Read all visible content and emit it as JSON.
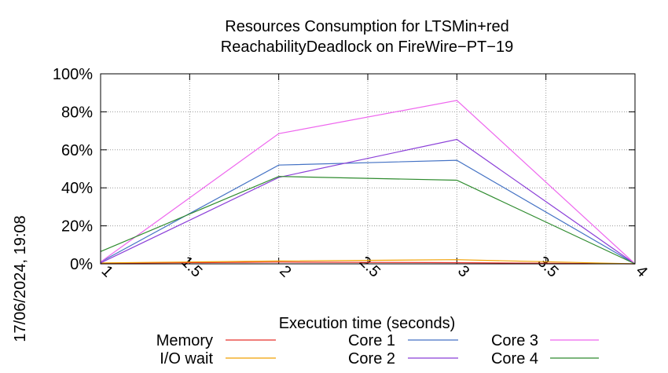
{
  "chart_data": {
    "type": "line",
    "title": "Resources Consumption for LTSMin+red",
    "subtitle": "ReachabilityDeadlock on FireWire−PT−19",
    "xlabel": "Execution time (seconds)",
    "ylabel": "",
    "side_label": "17/06/2024, 19:08",
    "xlim": [
      1,
      4
    ],
    "ylim": [
      0,
      100
    ],
    "xticks": [
      1,
      1.5,
      2,
      2.5,
      3,
      3.5,
      4
    ],
    "xtick_labels": [
      "1",
      "1.5",
      "2",
      "2.5",
      "3",
      "3.5",
      "4"
    ],
    "yticks": [
      0,
      20,
      40,
      60,
      80,
      100
    ],
    "ytick_labels": [
      "0%",
      "20%",
      "40%",
      "60%",
      "80%",
      "100%"
    ],
    "grid": true,
    "legend_position": "bottom",
    "series": [
      {
        "name": "Memory",
        "color": "#e8322b",
        "x": [
          1,
          2,
          3,
          4
        ],
        "y": [
          0.3,
          0.9,
          0.6,
          0
        ]
      },
      {
        "name": "I/O wait",
        "color": "#f0a000",
        "x": [
          1,
          2,
          3,
          4
        ],
        "y": [
          0.5,
          1.5,
          2.2,
          0
        ]
      },
      {
        "name": "Core 1",
        "color": "#4472c4",
        "x": [
          1,
          2,
          3,
          4
        ],
        "y": [
          1.0,
          52,
          54.5,
          0
        ]
      },
      {
        "name": "Core 2",
        "color": "#8b3fd8",
        "x": [
          1,
          2,
          3,
          4
        ],
        "y": [
          0.5,
          45.5,
          65.5,
          0
        ]
      },
      {
        "name": "Core 3",
        "color": "#ee66ee",
        "x": [
          1,
          2,
          3,
          4
        ],
        "y": [
          1.0,
          68.5,
          86,
          0
        ]
      },
      {
        "name": "Core 4",
        "color": "#2e8b2e",
        "x": [
          1,
          2,
          3,
          4
        ],
        "y": [
          6.5,
          46,
          44,
          0
        ]
      }
    ]
  }
}
